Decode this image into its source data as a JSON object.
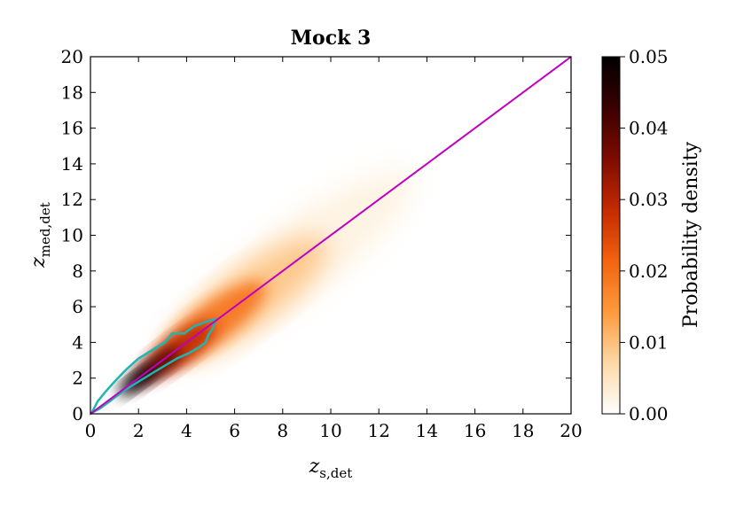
{
  "chart_data": {
    "type": "heatmap",
    "title": "Mock 3",
    "xlabel": {
      "main": "z",
      "sub": "s,det"
    },
    "ylabel": {
      "main": "z",
      "sub": "med,det"
    },
    "xlim": [
      0,
      20
    ],
    "ylim": [
      0,
      20
    ],
    "xticks": [
      "0",
      "2",
      "4",
      "6",
      "8",
      "10",
      "12",
      "14",
      "16",
      "18",
      "20"
    ],
    "yticks": [
      "0",
      "2",
      "4",
      "6",
      "8",
      "10",
      "12",
      "14",
      "16",
      "18",
      "20"
    ],
    "grid": false,
    "colorbar": {
      "label": "Probability density",
      "range": [
        0.0,
        0.05
      ],
      "ticks": [
        "0.00",
        "0.01",
        "0.02",
        "0.03",
        "0.04",
        "0.05"
      ],
      "colormap": [
        "#ffffff",
        "#fdd9a6",
        "#fd9a3c",
        "#f2630f",
        "#c42a00",
        "#7e0b00",
        "#3a0000",
        "#000000"
      ]
    },
    "density_blobs": [
      {
        "cx": 8.5,
        "cy": 8.5,
        "along": 14.0,
        "across": 3.6,
        "level": 0.004
      },
      {
        "cx": 6.5,
        "cy": 6.4,
        "along": 9.5,
        "across": 2.7,
        "level": 0.01
      },
      {
        "cx": 5.0,
        "cy": 5.0,
        "along": 6.5,
        "across": 1.9,
        "level": 0.02
      },
      {
        "cx": 3.6,
        "cy": 3.5,
        "along": 4.4,
        "across": 1.4,
        "level": 0.03
      },
      {
        "cx": 2.6,
        "cy": 2.5,
        "along": 3.2,
        "across": 1.0,
        "level": 0.042
      },
      {
        "cx": 1.9,
        "cy": 1.8,
        "along": 2.2,
        "across": 0.7,
        "level": 0.05
      }
    ],
    "contour": {
      "color": "#1fb5b0",
      "points": [
        [
          0.05,
          0.05
        ],
        [
          0.3,
          0.7
        ],
        [
          0.6,
          1.2
        ],
        [
          1.0,
          1.8
        ],
        [
          1.5,
          2.5
        ],
        [
          2.0,
          3.1
        ],
        [
          2.6,
          3.6
        ],
        [
          3.1,
          4.0
        ],
        [
          3.4,
          4.5
        ],
        [
          3.9,
          4.5
        ],
        [
          4.3,
          4.9
        ],
        [
          4.9,
          5.2
        ],
        [
          5.2,
          5.3
        ],
        [
          5.1,
          4.8
        ],
        [
          4.9,
          4.4
        ],
        [
          4.8,
          4.0
        ],
        [
          4.5,
          3.7
        ],
        [
          4.1,
          3.4
        ],
        [
          3.6,
          3.1
        ],
        [
          3.1,
          2.7
        ],
        [
          2.6,
          2.3
        ],
        [
          2.0,
          1.8
        ],
        [
          1.4,
          1.3
        ],
        [
          0.9,
          0.8
        ],
        [
          0.4,
          0.3
        ],
        [
          0.05,
          0.05
        ]
      ]
    },
    "reference_line": {
      "x": [
        0,
        20
      ],
      "y": [
        0,
        20
      ],
      "color": "#c000c0"
    }
  }
}
